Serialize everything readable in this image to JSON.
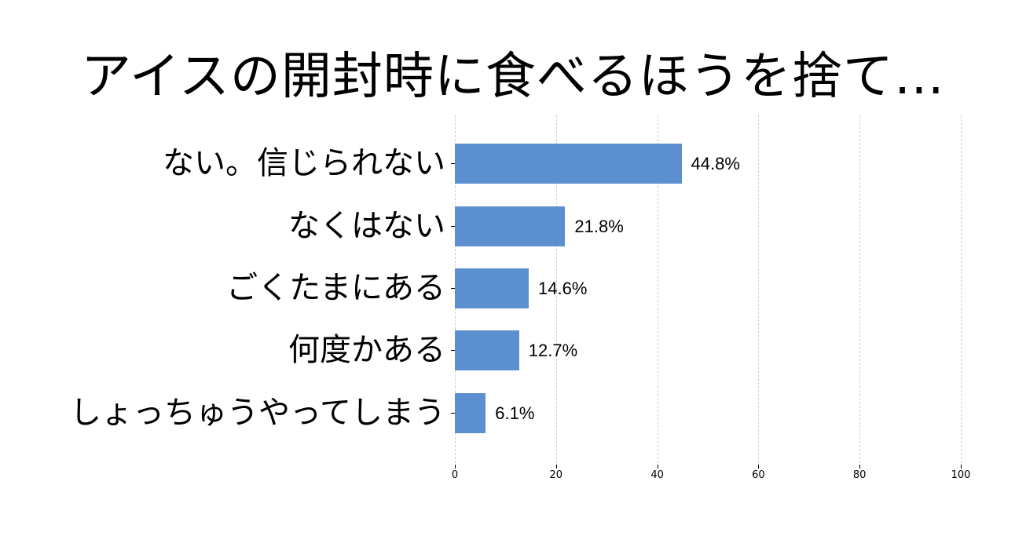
{
  "title": "アイスの開封時に食べるほうを捨て…",
  "chart_data": {
    "type": "bar",
    "orientation": "horizontal",
    "title": "アイスの開封時に食べるほうを捨て…",
    "xlabel": "",
    "ylabel": "",
    "xlim": [
      0,
      100
    ],
    "grid": true,
    "legend": null,
    "categories": [
      "ない。信じられない",
      "なくはない",
      "ごくたまにある",
      "何度かある",
      "しょっちゅうやってしまう"
    ],
    "values": [
      44.8,
      21.8,
      14.6,
      12.7,
      6.1
    ],
    "value_labels": [
      "44.8%",
      "21.8%",
      "14.6%",
      "12.7%",
      "6.1%"
    ],
    "x_ticks": [
      "0",
      "20",
      "40",
      "60",
      "80",
      "100"
    ],
    "bar_color": "#5b8fd0"
  }
}
